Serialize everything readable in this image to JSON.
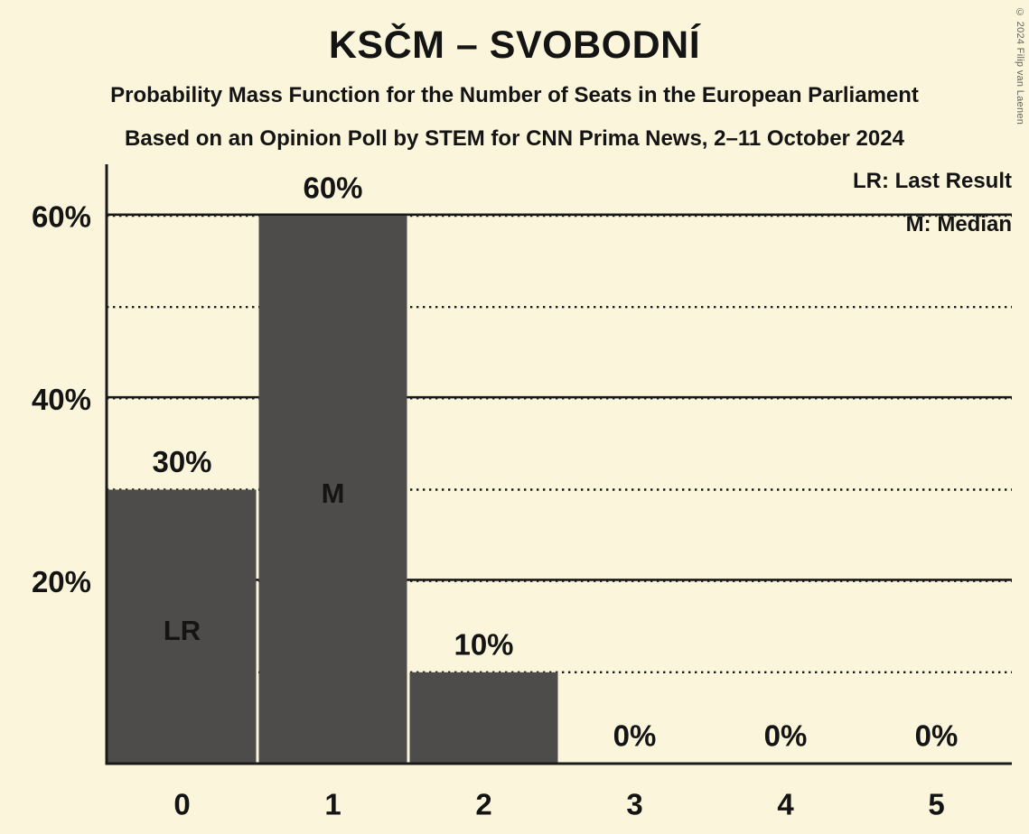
{
  "header": {
    "title": "KSČM – SVOBODNÍ",
    "subtitle1": "Probability Mass Function for the Number of Seats in the European Parliament",
    "subtitle2": "Based on an Opinion Poll by STEM for CNN Prima News, 2–11 October 2024"
  },
  "legend": {
    "lr": "LR: Last Result",
    "m": "M: Median"
  },
  "footer": {
    "copyright": "© 2024 Filip van Laenen"
  },
  "colors": {
    "background": "#FBF6DB",
    "bar": "#4D4C4A",
    "line": "#1A1A1A",
    "text": "#141414",
    "inner_label": "#FBF6DB",
    "copyright": "#63635C"
  },
  "chart_data": {
    "type": "bar",
    "title": "KSČM – SVOBODNÍ",
    "subtitle": "Probability Mass Function for the Number of Seats in the European Parliament",
    "categories": [
      "0",
      "1",
      "2",
      "3",
      "4",
      "5"
    ],
    "values": [
      30,
      60,
      10,
      0,
      0,
      0
    ],
    "data_labels": [
      "30%",
      "60%",
      "10%",
      "0%",
      "0%",
      "0%"
    ],
    "bar_inner_labels": [
      "LR",
      "M",
      "",
      "",
      "",
      ""
    ],
    "xlabel": "",
    "ylabel": "",
    "ylim": [
      0,
      65
    ],
    "y_ticks": [
      {
        "value": 20,
        "label": "20%"
      },
      {
        "value": 40,
        "label": "40%"
      },
      {
        "value": 60,
        "label": "60%"
      }
    ],
    "minor_gridlines": [
      10,
      20,
      30,
      40,
      50,
      60
    ],
    "major_gridlines": [
      20,
      40,
      60
    ],
    "grid": true,
    "legend_position": "top-right",
    "annotations": {
      "LR": "Last Result",
      "M": "Median"
    }
  }
}
